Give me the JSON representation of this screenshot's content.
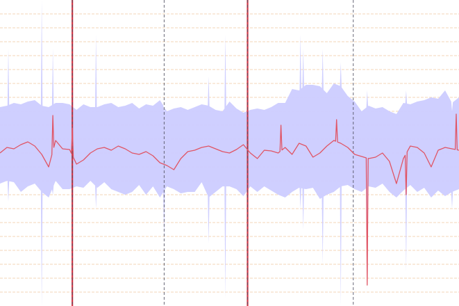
{
  "chart_data": {
    "type": "line",
    "title": "",
    "xlabel": "",
    "ylabel": "",
    "xlim": [
      0,
      330
    ],
    "ylim": [
      -220,
      220
    ],
    "grid": true,
    "legend": "none",
    "colors": {
      "band_fill": "#ccccff",
      "band_spike": "#c4c4ff",
      "line": "#e05565",
      "marker_solid": "#d33344",
      "marker_dashed": "#555566",
      "grid": "#f0c7a0"
    },
    "x": [
      0,
      5,
      10,
      15,
      20,
      25,
      30,
      35,
      40,
      45,
      50,
      55,
      60,
      65,
      70,
      75,
      80,
      85,
      90,
      95,
      100,
      105,
      110,
      115,
      120,
      125,
      130,
      135,
      140,
      145,
      150,
      155,
      160,
      165,
      170,
      175,
      180,
      185,
      190,
      195,
      200,
      205,
      210,
      215,
      220,
      225,
      230,
      235,
      240,
      245,
      250,
      255,
      260,
      265,
      270,
      275,
      280,
      285,
      290,
      295,
      300,
      305,
      310,
      315,
      320,
      325,
      330
    ],
    "series": [
      {
        "role": "mean",
        "values": [
          0,
          8,
          6,
          12,
          16,
          10,
          -2,
          -20,
          18,
          6,
          5,
          -16,
          -10,
          0,
          6,
          8,
          4,
          10,
          6,
          0,
          -2,
          2,
          -4,
          -14,
          -18,
          -24,
          -8,
          2,
          4,
          8,
          10,
          6,
          2,
          0,
          5,
          12,
          0,
          -8,
          4,
          3,
          0,
          8,
          -2,
          14,
          10,
          -6,
          0,
          10,
          18,
          14,
          8,
          -2,
          -5,
          -8,
          -6,
          0,
          -12,
          -44,
          -8,
          10,
          8,
          0,
          -20,
          4,
          8,
          6,
          4
        ]
      },
      {
        "role": "band_upper",
        "values": [
          66,
          68,
          72,
          70,
          74,
          76,
          68,
          66,
          72,
          72,
          70,
          62,
          70,
          66,
          66,
          70,
          72,
          66,
          68,
          72,
          64,
          70,
          68,
          76,
          60,
          64,
          66,
          62,
          66,
          70,
          68,
          62,
          60,
          74,
          64,
          58,
          62,
          64,
          62,
          66,
          72,
          72,
          92,
          90,
          98,
          98,
          96,
          86,
          100,
          96,
          82,
          74,
          60,
          68,
          64,
          66,
          60,
          56,
          72,
          70,
          74,
          76,
          80,
          78,
          90,
          72,
          80
        ]
      },
      {
        "role": "band_lower",
        "values": [
          -44,
          -40,
          -42,
          -56,
          -48,
          -44,
          -56,
          -64,
          -40,
          -52,
          -52,
          -48,
          -50,
          -40,
          -50,
          -42,
          -52,
          -56,
          -60,
          -56,
          -46,
          -60,
          -48,
          -64,
          -48,
          -52,
          -58,
          -56,
          -56,
          -42,
          -64,
          -56,
          -48,
          -48,
          -52,
          -62,
          -48,
          -56,
          -48,
          -54,
          -60,
          -64,
          -56,
          -50,
          -52,
          -50,
          -66,
          -60,
          -56,
          -48,
          -46,
          -52,
          -56,
          -48,
          -50,
          -44,
          -56,
          -64,
          -54,
          -46,
          -56,
          -50,
          -64,
          -54,
          -62,
          -56,
          -52
        ]
      }
    ],
    "band_spikes": [
      {
        "x": 6,
        "upper": 150,
        "lower": -70
      },
      {
        "x": 30,
        "upper": 220,
        "lower": -220
      },
      {
        "x": 38,
        "upper": 150,
        "lower": -60
      },
      {
        "x": 52,
        "upper": 190,
        "lower": -160
      },
      {
        "x": 69,
        "upper": 170,
        "lower": -80
      },
      {
        "x": 118,
        "upper": 60,
        "lower": -130
      },
      {
        "x": 150,
        "upper": 110,
        "lower": -130
      },
      {
        "x": 162,
        "upper": 170,
        "lower": -210
      },
      {
        "x": 216,
        "upper": 170,
        "lower": -80
      },
      {
        "x": 218,
        "upper": 150,
        "lower": -110
      },
      {
        "x": 232,
        "upper": 150,
        "lower": -160
      },
      {
        "x": 245,
        "upper": 130,
        "lower": -220
      },
      {
        "x": 264,
        "upper": 90,
        "lower": -200
      },
      {
        "x": 292,
        "upper": 90,
        "lower": -170
      },
      {
        "x": 325,
        "upper": 60,
        "lower": -80
      }
    ],
    "line_spikes": [
      {
        "x": 38,
        "value": 54
      },
      {
        "x": 52,
        "value": 36
      },
      {
        "x": 202,
        "value": 40
      },
      {
        "x": 242,
        "value": 48
      },
      {
        "x": 264,
        "value": -190
      },
      {
        "x": 292,
        "value": -60
      },
      {
        "x": 328,
        "value": 56
      }
    ],
    "vertical_markers": [
      {
        "x": 52,
        "style": "solid"
      },
      {
        "x": 52,
        "style": "dashed"
      },
      {
        "x": 118,
        "style": "dashed"
      },
      {
        "x": 178,
        "style": "solid"
      },
      {
        "x": 178,
        "style": "dashed"
      },
      {
        "x": 254,
        "style": "dashed"
      }
    ],
    "gridlines_y": [
      -200,
      -180,
      -160,
      -140,
      -120,
      -100,
      -80,
      -60,
      -40,
      -20,
      0,
      20,
      40,
      60,
      80,
      100,
      120,
      140,
      160,
      180,
      200
    ]
  }
}
